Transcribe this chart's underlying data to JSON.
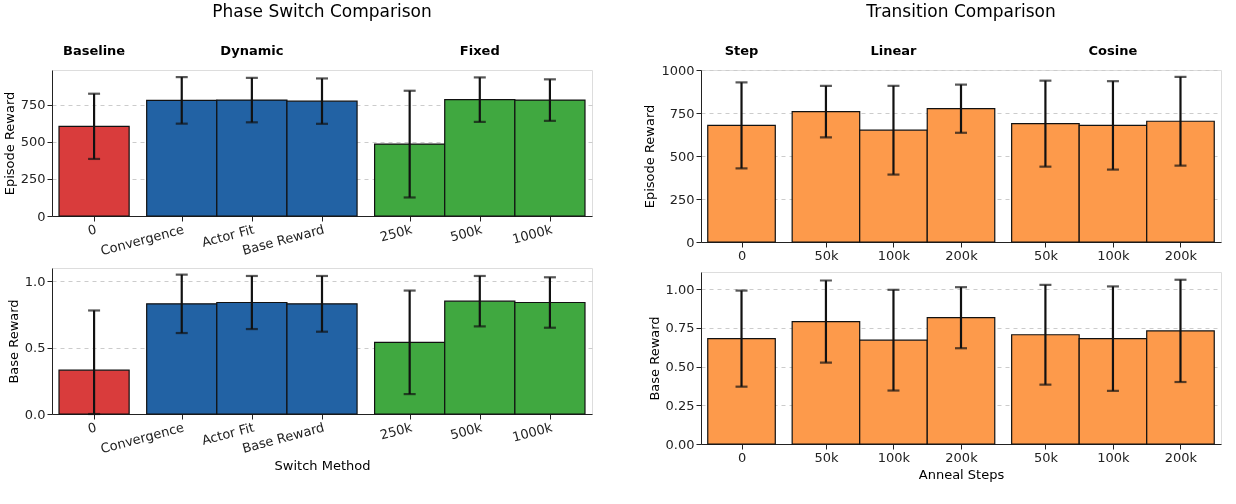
{
  "chart_data": [
    {
      "type": "bar",
      "title": "Phase Switch Comparison",
      "ylabel": "Episode Reward",
      "categories": [
        "0",
        "Convergence",
        "Actor Fit",
        "Base Reward",
        "250k",
        "500k",
        "1000k"
      ],
      "values": [
        605,
        780,
        782,
        775,
        485,
        785,
        782
      ],
      "errors": [
        220,
        157,
        150,
        153,
        360,
        150,
        140
      ],
      "colors": [
        "#d93c3c",
        "#2262a4",
        "#2262a4",
        "#2262a4",
        "#40a840",
        "#40a840",
        "#40a840"
      ],
      "ylim": [
        0,
        985
      ],
      "yticks": [
        0,
        250,
        500,
        750
      ],
      "grid": "y",
      "annotations": [
        "Baseline",
        "Dynamic",
        "Fixed"
      ]
    },
    {
      "type": "bar",
      "xlabel": "Switch Method",
      "ylabel": "Base Reward",
      "categories": [
        "0",
        "Convergence",
        "Actor Fit",
        "Base Reward",
        "250k",
        "500k",
        "1000k"
      ],
      "values": [
        0.33,
        0.83,
        0.84,
        0.83,
        0.54,
        0.85,
        0.84
      ],
      "errors": [
        [
          0,
          0.78
        ],
        0.22,
        0.2,
        0.21,
        0.39,
        0.19,
        0.19
      ],
      "colors": [
        "#d93c3c",
        "#2262a4",
        "#2262a4",
        "#2262a4",
        "#40a840",
        "#40a840",
        "#40a840"
      ],
      "ylim": [
        0,
        1.1
      ],
      "yticks": [
        {
          "value": 0,
          "label": "0.0"
        },
        {
          "value": 0.5,
          "label": "0.5"
        },
        {
          "value": 1,
          "label": "1.0"
        }
      ],
      "grid": "y"
    },
    {
      "type": "bar",
      "title": "Transition Comparison",
      "ylabel": "Episode Reward",
      "categories": [
        "0",
        "50k",
        "100k",
        "200k",
        "50k",
        "100k",
        "200k"
      ],
      "values": [
        678,
        758,
        650,
        775,
        688,
        678,
        702
      ],
      "errors": [
        250,
        150,
        258,
        140,
        250,
        257,
        258
      ],
      "colors": [
        "#fd9a4b",
        "#fd9a4b",
        "#fd9a4b",
        "#fd9a4b",
        "#fd9a4b",
        "#fd9a4b",
        "#fd9a4b"
      ],
      "ylim": [
        0,
        1000
      ],
      "yticks": [
        0,
        250,
        500,
        750,
        1000
      ],
      "grid": "y",
      "annotations": [
        "Step",
        "Linear",
        "Cosine"
      ]
    },
    {
      "type": "bar",
      "xlabel": "Anneal Steps",
      "ylabel": "Base Reward",
      "categories": [
        "0",
        "50k",
        "100k",
        "200k",
        "50k",
        "100k",
        "200k"
      ],
      "values": [
        0.68,
        0.79,
        0.67,
        0.815,
        0.705,
        0.68,
        0.73
      ],
      "errors": [
        0.31,
        0.265,
        0.325,
        0.197,
        0.322,
        0.337,
        0.33
      ],
      "colors": [
        "#fd9a4b",
        "#fd9a4b",
        "#fd9a4b",
        "#fd9a4b",
        "#fd9a4b",
        "#fd9a4b",
        "#fd9a4b"
      ],
      "ylim": [
        0,
        1.11
      ],
      "yticks": [
        {
          "value": 0,
          "label": "0.00"
        },
        {
          "value": 0.25,
          "label": "0.25"
        },
        {
          "value": 0.5,
          "label": "0.50"
        },
        {
          "value": 0.75,
          "label": "0.75"
        },
        {
          "value": 1,
          "label": "1.00"
        }
      ],
      "grid": "y"
    }
  ]
}
